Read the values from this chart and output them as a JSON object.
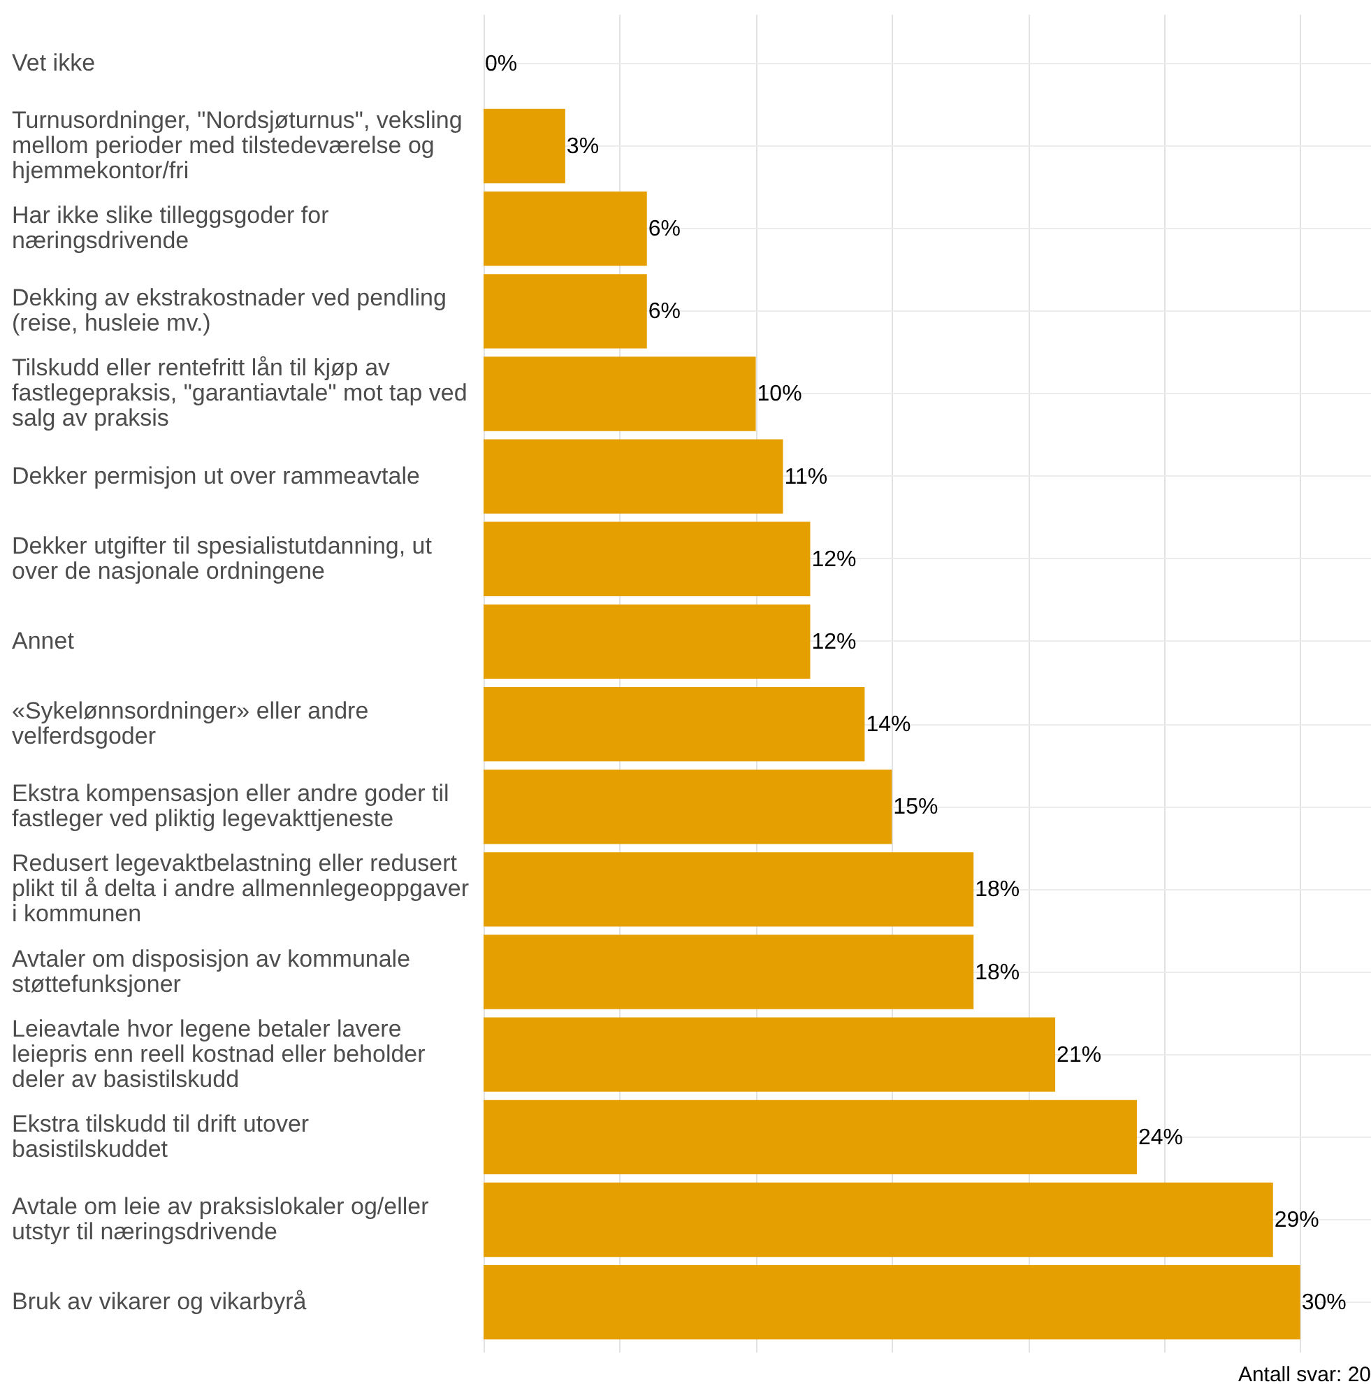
{
  "chart_data": {
    "type": "bar",
    "orientation": "horizontal",
    "categories": [
      "Vet ikke",
      "Turnusordninger, \"Nordsjøturnus\", veksling mellom perioder med tilstedeværelse og hjemmekontor/fri",
      "Har ikke slike tilleggsgoder for næringsdrivende",
      "Dekking av ekstrakostnader ved pendling (reise, husleie mv.)",
      "Tilskudd eller rentefritt lån til kjøp av fastlegepraksis, \"garantiavtale\" mot tap ved salg av praksis",
      "Dekker permisjon ut over rammeavtale",
      "Dekker utgifter til spesialistutdanning, ut over de nasjonale ordningene",
      "Annet",
      "«Sykelønnsordninger» eller andre velferdsgoder",
      "Ekstra kompensasjon eller andre goder til fastleger ved pliktig legevakttjeneste",
      "Redusert legevaktbelastning eller redusert plikt til å delta i andre allmennlegeoppgaver i kommunen",
      "Avtaler om disposisjon av kommunale støttefunksjoner",
      "Leieavtale hvor legene betaler lavere leiepris enn reell kostnad eller beholder deler av basistilskudd",
      "Ekstra tilskudd til drift utover basistilskuddet",
      "Avtale om leie av praksislokaler og/eller utstyr til næringsdrivende",
      "Bruk av vikarer og vikarbyrå"
    ],
    "values": [
      0,
      3,
      6,
      6,
      10,
      11,
      12,
      12,
      14,
      15,
      18,
      18,
      21,
      24,
      29,
      30
    ],
    "value_labels": [
      "0%",
      "3%",
      "6%",
      "6%",
      "10%",
      "11%",
      "12%",
      "12%",
      "14%",
      "15%",
      "18%",
      "18%",
      "21%",
      "24%",
      "29%",
      "30%"
    ],
    "color": "#e69f00",
    "xlim": [
      0,
      32.6
    ],
    "xticks": [
      {
        "value": 0,
        "label": null
      },
      {
        "value": 5,
        "label": null
      },
      {
        "value": 10,
        "label": null
      },
      {
        "value": 15,
        "label": null
      },
      {
        "value": 20,
        "label": null
      },
      {
        "value": 25,
        "label": null
      },
      {
        "value": 30,
        "label": null
      }
    ],
    "tick_labels": "y",
    "grid": true,
    "annotations": [
      "Antall svar: 20"
    ]
  }
}
